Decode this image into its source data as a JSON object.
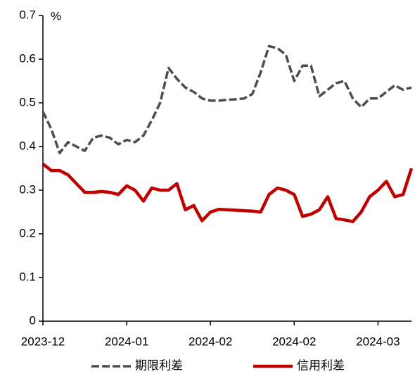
{
  "chart_data": {
    "type": "line",
    "y_axis_label": "%",
    "categories": [
      "2023-12",
      null,
      null,
      null,
      null,
      null,
      null,
      null,
      null,
      null,
      "2024-01",
      null,
      null,
      null,
      null,
      null,
      null,
      null,
      null,
      null,
      "2024-02",
      null,
      null,
      null,
      null,
      null,
      null,
      null,
      null,
      null,
      "2024-02",
      null,
      null,
      null,
      null,
      null,
      null,
      null,
      null,
      null,
      "2024-03",
      null,
      null,
      null,
      null
    ],
    "series": [
      {
        "name": "期限利差",
        "color": "#4d4d4d",
        "dashed": true,
        "values": [
          0.48,
          0.44,
          0.385,
          0.41,
          0.4,
          0.39,
          0.42,
          0.425,
          0.42,
          0.405,
          0.415,
          0.41,
          0.425,
          0.46,
          0.5,
          0.58,
          0.555,
          0.535,
          0.525,
          0.51,
          0.505,
          0.505,
          0.507,
          0.508,
          0.51,
          0.52,
          0.57,
          0.63,
          0.625,
          0.61,
          0.55,
          0.585,
          0.585,
          0.515,
          0.53,
          0.545,
          0.55,
          0.51,
          0.49,
          0.51,
          0.51,
          0.525,
          0.54,
          0.53,
          0.535
        ]
      },
      {
        "name": "信用利差",
        "color": "#c00000",
        "dashed": false,
        "values": [
          0.36,
          0.345,
          0.345,
          0.335,
          0.315,
          0.295,
          0.295,
          0.297,
          0.295,
          0.29,
          0.31,
          0.3,
          0.275,
          0.305,
          0.3,
          0.3,
          0.315,
          0.255,
          0.265,
          0.23,
          0.25,
          0.256,
          0.255,
          0.254,
          0.253,
          0.252,
          0.25,
          0.29,
          0.305,
          0.3,
          0.29,
          0.24,
          0.245,
          0.255,
          0.285,
          0.235,
          0.232,
          0.228,
          0.25,
          0.285,
          0.3,
          0.32,
          0.285,
          0.29,
          0.35
        ]
      }
    ],
    "ylim": [
      0,
      0.7
    ],
    "yticks": [
      0,
      0.1,
      0.2,
      0.3,
      0.4,
      0.5,
      0.6,
      0.7
    ],
    "legend": "bottom"
  }
}
